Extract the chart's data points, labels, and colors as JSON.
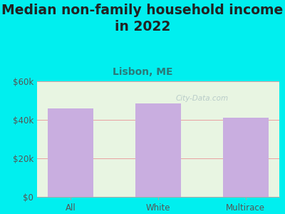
{
  "title": "Median non-family household income\nin 2022",
  "subtitle": "Lisbon, ME",
  "categories": [
    "All",
    "White",
    "Multirace"
  ],
  "values": [
    46000,
    48500,
    41000
  ],
  "bar_color": "#c9aee0",
  "background_outer": "#00EFEF",
  "background_inner": "#e8f5e2",
  "ylim": [
    0,
    60000
  ],
  "yticks": [
    0,
    20000,
    40000,
    60000
  ],
  "ytick_labels": [
    "$0",
    "$20k",
    "$40k",
    "$60k"
  ],
  "title_fontsize": 13.5,
  "title_color": "#222222",
  "subtitle_fontsize": 10,
  "subtitle_color": "#2a7a7a",
  "tick_color": "#555555",
  "tick_fontsize": 8.5,
  "grid_color": "#e8a0a0",
  "watermark": "City-Data.com",
  "watermark_color": "#b0c4c4",
  "watermark_alpha": 0.85
}
